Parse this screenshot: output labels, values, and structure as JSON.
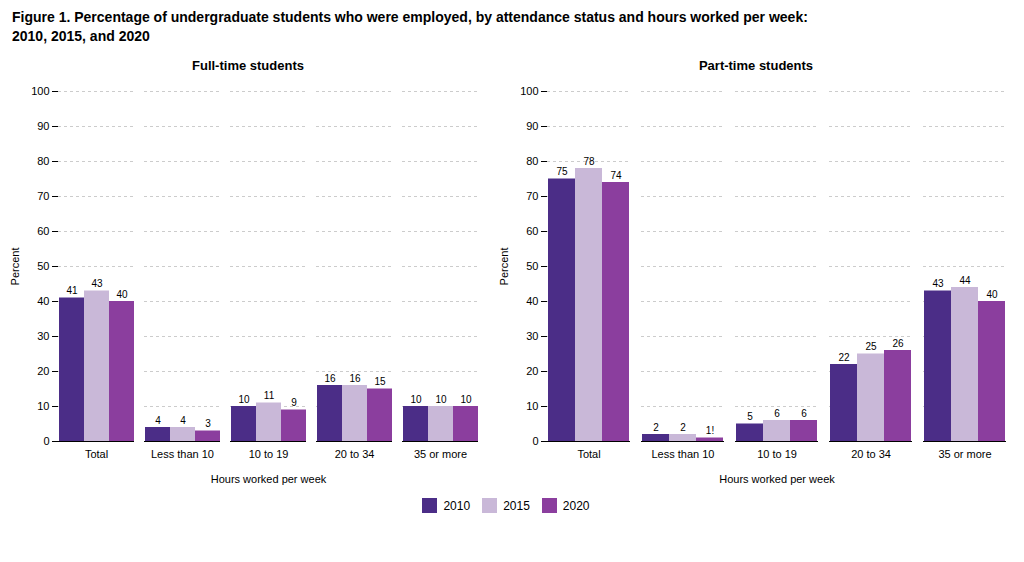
{
  "title": "Figure 1. Percentage of undergraduate students who were employed, by attendance status and hours worked per week:",
  "subtitle": "2010, 2015, and 2020",
  "legend": "bottom",
  "chart_data": [
    {
      "type": "bar",
      "title": "Full-time students",
      "xlabel": "Hours worked per week",
      "ylabel": "Percent",
      "categories": [
        "Total",
        "Less than 10",
        "10 to 19",
        "20 to 34",
        "35 or more"
      ],
      "series": [
        {
          "name": "2010",
          "color": "#4B2D87",
          "values": [
            41,
            4,
            10,
            16,
            10
          ]
        },
        {
          "name": "2015",
          "color": "#C9B8D8",
          "values": [
            43,
            4,
            11,
            16,
            10
          ]
        },
        {
          "name": "2020",
          "color": "#8B3E9E",
          "values": [
            40,
            3,
            9,
            15,
            10
          ]
        }
      ],
      "ylim": [
        0,
        100
      ],
      "yticks": [
        0,
        10,
        20,
        30,
        40,
        50,
        60,
        70,
        80,
        90,
        100
      ],
      "grid": true,
      "data_labels": true
    },
    {
      "type": "bar",
      "title": "Part-time students",
      "xlabel": "Hours worked per week",
      "ylabel": "Percent",
      "categories": [
        "Total",
        "Less than 10",
        "10 to 19",
        "20 to 34",
        "35 or more"
      ],
      "series": [
        {
          "name": "2010",
          "color": "#4B2D87",
          "values": [
            75,
            2,
            5,
            22,
            43
          ]
        },
        {
          "name": "2015",
          "color": "#C9B8D8",
          "values": [
            78,
            2,
            6,
            25,
            44
          ]
        },
        {
          "name": "2020",
          "color": "#8B3E9E",
          "values": [
            74,
            1,
            6,
            26,
            40
          ],
          "value_labels": [
            "74",
            "1!",
            "6",
            "26",
            "40"
          ]
        }
      ],
      "ylim": [
        0,
        100
      ],
      "yticks": [
        0,
        10,
        20,
        30,
        40,
        50,
        60,
        70,
        80,
        90,
        100
      ],
      "grid": true,
      "data_labels": true
    }
  ]
}
